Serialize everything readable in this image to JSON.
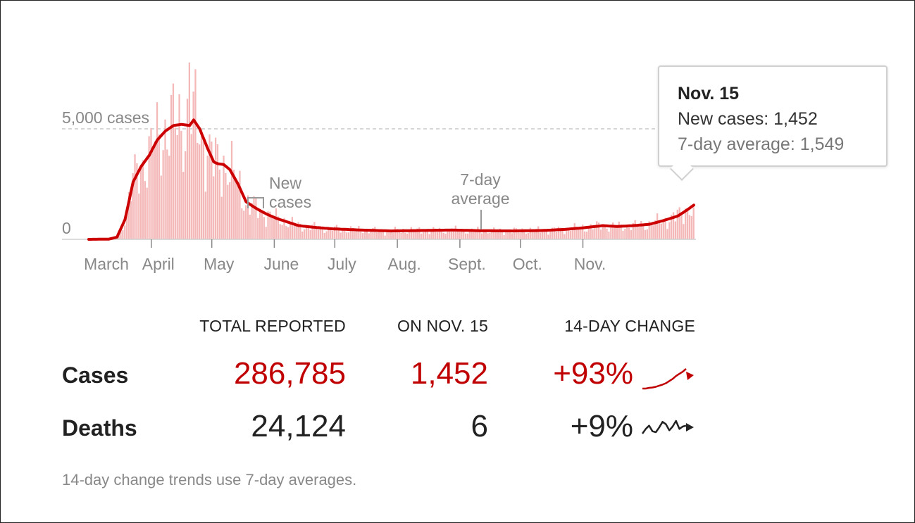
{
  "chart_data": {
    "type": "bar",
    "title": "",
    "xlabel": "",
    "ylabel": "",
    "ylim": [
      0,
      8000
    ],
    "x_ticks": [
      "March",
      "April",
      "May",
      "June",
      "July",
      "Aug.",
      "Sept.",
      "Oct.",
      "Nov."
    ],
    "y_ticks": [
      {
        "value": 0,
        "label": "0"
      },
      {
        "value": 5000,
        "label": "5,000 cases"
      }
    ],
    "series": [
      {
        "name": "New cases",
        "type": "bar",
        "color": "#f4b8b8"
      },
      {
        "name": "7-day average",
        "type": "line",
        "color": "#cc0000"
      }
    ],
    "annotations": {
      "new_cases_label": [
        "New",
        "cases"
      ],
      "avg_label": [
        "7-day",
        "average"
      ]
    },
    "avg_keypoints": [
      {
        "day": 0,
        "value": 0
      },
      {
        "day": 10,
        "value": 10
      },
      {
        "day": 14,
        "value": 100
      },
      {
        "day": 18,
        "value": 900
      },
      {
        "day": 22,
        "value": 2600
      },
      {
        "day": 26,
        "value": 3300
      },
      {
        "day": 30,
        "value": 3800
      },
      {
        "day": 34,
        "value": 4500
      },
      {
        "day": 38,
        "value": 4900
      },
      {
        "day": 42,
        "value": 5150
      },
      {
        "day": 46,
        "value": 5200
      },
      {
        "day": 50,
        "value": 5150
      },
      {
        "day": 52,
        "value": 5400
      },
      {
        "day": 55,
        "value": 5000
      },
      {
        "day": 59,
        "value": 4100
      },
      {
        "day": 62,
        "value": 3500
      },
      {
        "day": 64,
        "value": 3420
      },
      {
        "day": 67,
        "value": 3380
      },
      {
        "day": 70,
        "value": 3150
      },
      {
        "day": 74,
        "value": 2500
      },
      {
        "day": 78,
        "value": 1700
      },
      {
        "day": 83,
        "value": 1400
      },
      {
        "day": 88,
        "value": 1150
      },
      {
        "day": 93,
        "value": 950
      },
      {
        "day": 98,
        "value": 800
      },
      {
        "day": 104,
        "value": 620
      },
      {
        "day": 110,
        "value": 560
      },
      {
        "day": 120,
        "value": 480
      },
      {
        "day": 135,
        "value": 420
      },
      {
        "day": 150,
        "value": 380
      },
      {
        "day": 165,
        "value": 400
      },
      {
        "day": 180,
        "value": 420
      },
      {
        "day": 195,
        "value": 390
      },
      {
        "day": 210,
        "value": 380
      },
      {
        "day": 225,
        "value": 400
      },
      {
        "day": 236,
        "value": 450
      },
      {
        "day": 245,
        "value": 520
      },
      {
        "day": 255,
        "value": 620
      },
      {
        "day": 262,
        "value": 580
      },
      {
        "day": 270,
        "value": 620
      },
      {
        "day": 278,
        "value": 680
      },
      {
        "day": 285,
        "value": 850
      },
      {
        "day": 292,
        "value": 1050
      },
      {
        "day": 297,
        "value": 1350
      },
      {
        "day": 300,
        "value": 1549
      }
    ],
    "tooltip": {
      "date": "Nov. 15",
      "new_cases": 1452,
      "seven_day_average": 1549
    }
  },
  "tooltip": {
    "date": "Nov. 15",
    "new_cases_text": "New cases: 1,452",
    "avg_text": "7-day average: 1,549"
  },
  "table": {
    "headers": {
      "total": "TOTAL REPORTED",
      "on_date": "ON NOV. 15",
      "change": "14-DAY CHANGE"
    },
    "rows": [
      {
        "label": "Cases",
        "total": "286,785",
        "on_date": "1,452",
        "change": "+93%",
        "color": "#c00000",
        "trend": [
          0.45,
          0.45,
          0.47,
          0.48,
          0.5,
          0.53,
          0.56,
          0.6,
          0.66,
          0.72,
          0.8,
          0.86,
          0.92,
          1.0
        ]
      },
      {
        "label": "Deaths",
        "total": "24,124",
        "on_date": "6",
        "change": "+9%",
        "color": "#222222",
        "trend": [
          0.45,
          0.55,
          0.62,
          0.5,
          0.48,
          0.58,
          0.7,
          0.65,
          0.52,
          0.6,
          0.72,
          0.55,
          0.6,
          0.62
        ]
      }
    ]
  },
  "footnote": "14-day change trends use 7-day averages."
}
